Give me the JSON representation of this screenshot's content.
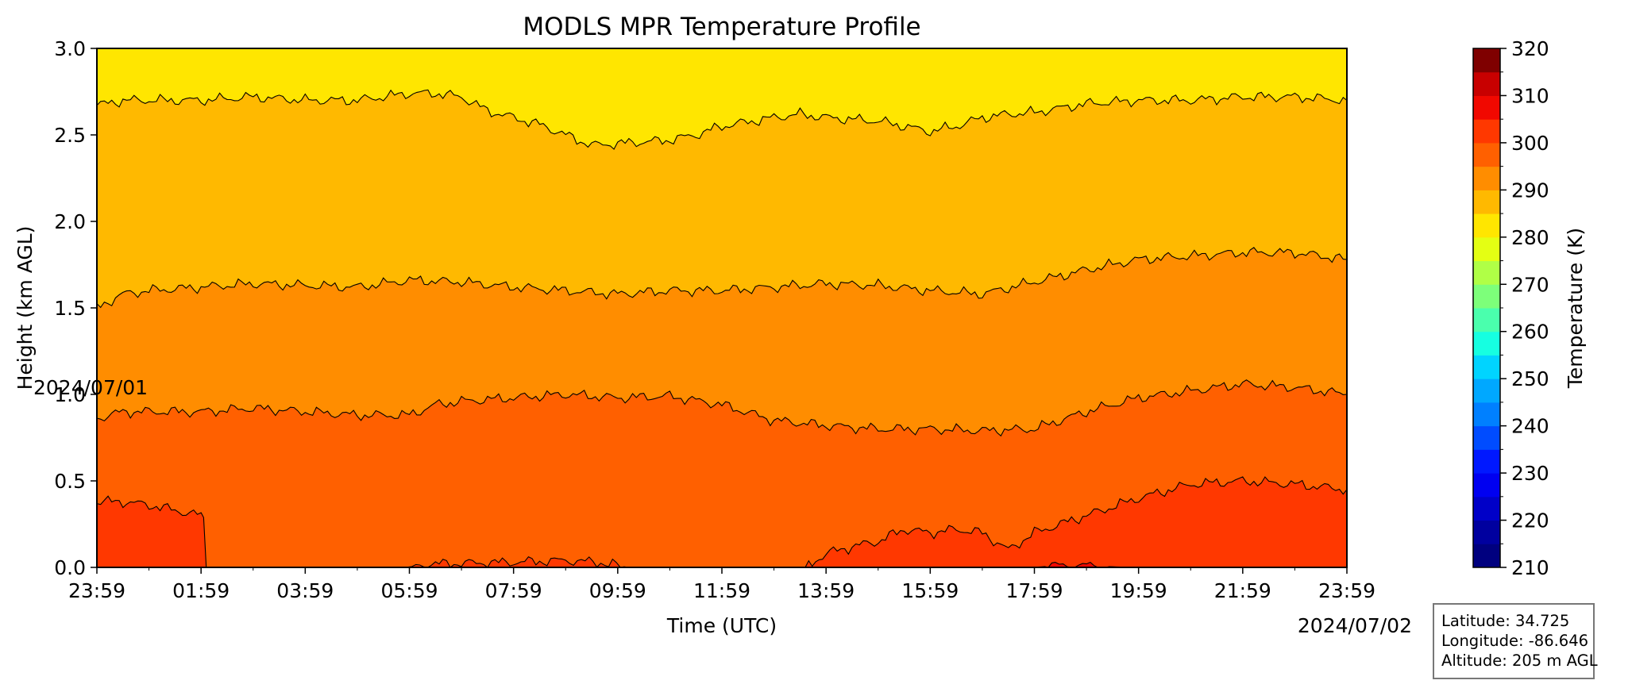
{
  "chart_data": {
    "type": "filled-contour",
    "title": "MODLS MPR Temperature Profile",
    "xlabel": "Time (UTC)",
    "ylabel": "Height (km AGL)",
    "colorbar_label": "Temperature (K)",
    "x_ticks": [
      "23:59",
      "01:59",
      "03:59",
      "05:59",
      "07:59",
      "09:59",
      "11:59",
      "13:59",
      "15:59",
      "17:59",
      "19:59",
      "21:59",
      "23:59"
    ],
    "x_hours": [
      0,
      2,
      4,
      6,
      8,
      10,
      12,
      14,
      16,
      18,
      20,
      22,
      24
    ],
    "x_range_hours": [
      0,
      24
    ],
    "start_date": "2024/07/01",
    "end_date": "2024/07/02",
    "y_ticks": [
      "0.0",
      "0.5",
      "1.0",
      "1.5",
      "2.0",
      "2.5",
      "3.0"
    ],
    "ylim": [
      0.0,
      3.0
    ],
    "colorbar_ticks": [
      "210",
      "220",
      "230",
      "240",
      "250",
      "260",
      "270",
      "280",
      "290",
      "300",
      "310",
      "320"
    ],
    "colorbar_range": [
      210,
      320
    ],
    "colorbar_levels": [
      {
        "range": [
          210,
          215
        ],
        "color": "#00007f"
      },
      {
        "range": [
          215,
          220
        ],
        "color": "#00009f"
      },
      {
        "range": [
          220,
          225
        ],
        "color": "#0000c8"
      },
      {
        "range": [
          225,
          230
        ],
        "color": "#0000f1"
      },
      {
        "range": [
          230,
          235
        ],
        "color": "#0018ff"
      },
      {
        "range": [
          235,
          240
        ],
        "color": "#004cff"
      },
      {
        "range": [
          240,
          245
        ],
        "color": "#0080ff"
      },
      {
        "range": [
          245,
          250
        ],
        "color": "#00a8ff"
      },
      {
        "range": [
          250,
          255
        ],
        "color": "#00d4ff"
      },
      {
        "range": [
          255,
          260
        ],
        "color": "#16ffe1"
      },
      {
        "range": [
          260,
          265
        ],
        "color": "#4affad"
      },
      {
        "range": [
          265,
          270
        ],
        "color": "#7dff7a"
      },
      {
        "range": [
          270,
          275
        ],
        "color": "#b0ff46"
      },
      {
        "range": [
          275,
          280
        ],
        "color": "#e4ff13"
      },
      {
        "range": [
          280,
          285
        ],
        "color": "#ffe600"
      },
      {
        "range": [
          285,
          290
        ],
        "color": "#ffb900"
      },
      {
        "range": [
          290,
          295
        ],
        "color": "#ff8d00"
      },
      {
        "range": [
          295,
          300
        ],
        "color": "#ff6000"
      },
      {
        "range": [
          300,
          305
        ],
        "color": "#ff3800"
      },
      {
        "range": [
          305,
          310
        ],
        "color": "#f10800"
      },
      {
        "range": [
          310,
          315
        ],
        "color": "#c80000"
      },
      {
        "range": [
          315,
          320
        ],
        "color": "#7f0000"
      }
    ],
    "contour_boundaries": [
      {
        "name": "280 K / 285 K",
        "upper_color": "#ffe600",
        "lower_color": "#ffb900",
        "height_km": [
          [
            0,
            2.67
          ],
          [
            0.5,
            2.7
          ],
          [
            1,
            2.7
          ],
          [
            2,
            2.7
          ],
          [
            3,
            2.72
          ],
          [
            4,
            2.7
          ],
          [
            5,
            2.7
          ],
          [
            6,
            2.74
          ],
          [
            6.5,
            2.74
          ],
          [
            7,
            2.72
          ],
          [
            7.5,
            2.64
          ],
          [
            8,
            2.6
          ],
          [
            8.5,
            2.56
          ],
          [
            9,
            2.5
          ],
          [
            9.5,
            2.44
          ],
          [
            10,
            2.45
          ],
          [
            11,
            2.47
          ],
          [
            11.5,
            2.5
          ],
          [
            12,
            2.55
          ],
          [
            13,
            2.6
          ],
          [
            13.5,
            2.62
          ],
          [
            14,
            2.6
          ],
          [
            15,
            2.58
          ],
          [
            15.5,
            2.55
          ],
          [
            16,
            2.52
          ],
          [
            16.5,
            2.55
          ],
          [
            17,
            2.6
          ],
          [
            17.5,
            2.62
          ],
          [
            18,
            2.63
          ],
          [
            19,
            2.68
          ],
          [
            20,
            2.7
          ],
          [
            21,
            2.7
          ],
          [
            22,
            2.72
          ],
          [
            23,
            2.72
          ],
          [
            24,
            2.7
          ]
        ]
      },
      {
        "name": "285 K / 290 K",
        "upper_color": "#ffb900",
        "lower_color": "#ff8d00",
        "height_km": [
          [
            0,
            1.5
          ],
          [
            0.5,
            1.58
          ],
          [
            1,
            1.6
          ],
          [
            2,
            1.62
          ],
          [
            3,
            1.64
          ],
          [
            4,
            1.63
          ],
          [
            5,
            1.62
          ],
          [
            6,
            1.66
          ],
          [
            7,
            1.65
          ],
          [
            8,
            1.62
          ],
          [
            9,
            1.6
          ],
          [
            10,
            1.58
          ],
          [
            11,
            1.6
          ],
          [
            12,
            1.6
          ],
          [
            13,
            1.62
          ],
          [
            14,
            1.64
          ],
          [
            15,
            1.63
          ],
          [
            16,
            1.6
          ],
          [
            17,
            1.58
          ],
          [
            18,
            1.65
          ],
          [
            19,
            1.72
          ],
          [
            20,
            1.78
          ],
          [
            21,
            1.8
          ],
          [
            22,
            1.82
          ],
          [
            23,
            1.82
          ],
          [
            24,
            1.78
          ]
        ]
      },
      {
        "name": "290 K / 295 K",
        "upper_color": "#ff8d00",
        "lower_color": "#ff6000",
        "height_km": [
          [
            0,
            0.86
          ],
          [
            0.5,
            0.9
          ],
          [
            1,
            0.9
          ],
          [
            2,
            0.9
          ],
          [
            3,
            0.92
          ],
          [
            4,
            0.9
          ],
          [
            5,
            0.88
          ],
          [
            6,
            0.88
          ],
          [
            6.5,
            0.94
          ],
          [
            7,
            0.96
          ],
          [
            8,
            0.98
          ],
          [
            9,
            1.0
          ],
          [
            10,
            0.98
          ],
          [
            11,
            0.99
          ],
          [
            12,
            0.94
          ],
          [
            13,
            0.85
          ],
          [
            14,
            0.82
          ],
          [
            15,
            0.8
          ],
          [
            16,
            0.8
          ],
          [
            17,
            0.79
          ],
          [
            18,
            0.8
          ],
          [
            19,
            0.9
          ],
          [
            20,
            0.98
          ],
          [
            21,
            1.02
          ],
          [
            22,
            1.06
          ],
          [
            23,
            1.04
          ],
          [
            24,
            1.0
          ]
        ]
      },
      {
        "name": "295 K / 300 K",
        "upper_color": "#ff6000",
        "lower_color": "#ff3800",
        "height_km": [
          [
            0,
            0.38
          ],
          [
            0.5,
            0.38
          ],
          [
            1,
            0.36
          ],
          [
            1.5,
            0.33
          ],
          [
            2,
            0.3
          ],
          [
            2.05,
            0.28
          ],
          [
            2.1,
            0.0
          ],
          [
            13.6,
            0.0
          ],
          [
            14,
            0.08
          ],
          [
            14.5,
            0.12
          ],
          [
            15,
            0.15
          ],
          [
            15.5,
            0.22
          ],
          [
            16,
            0.2
          ],
          [
            16.5,
            0.22
          ],
          [
            17,
            0.2
          ],
          [
            17.5,
            0.1
          ],
          [
            18,
            0.2
          ],
          [
            19,
            0.3
          ],
          [
            20,
            0.4
          ],
          [
            21,
            0.48
          ],
          [
            22,
            0.5
          ],
          [
            23,
            0.48
          ],
          [
            24,
            0.45
          ]
        ]
      },
      {
        "name": "300 K / 305 K",
        "upper_color": "#ff3800",
        "lower_color": "#f10800",
        "height_km": [
          [
            0,
            0
          ],
          [
            18,
            0
          ],
          [
            18.4,
            0.01
          ],
          [
            19,
            0.01
          ],
          [
            19.8,
            0.0
          ],
          [
            24,
            0
          ]
        ]
      },
      {
        "name": "295 K / 300 K pocket",
        "upper_color": "#ff6000",
        "lower_color": "#ff3800",
        "height_km": [
          [
            5.9,
            0
          ],
          [
            6.5,
            0.02
          ],
          [
            8,
            0.03
          ],
          [
            9,
            0.04
          ],
          [
            9.6,
            0.03
          ],
          [
            10.2,
            0
          ]
        ]
      }
    ]
  },
  "station_info": {
    "latitude": "Latitude: 34.725",
    "longitude": "Longitude: -86.646",
    "altitude": "Altitude: 205 m AGL"
  }
}
